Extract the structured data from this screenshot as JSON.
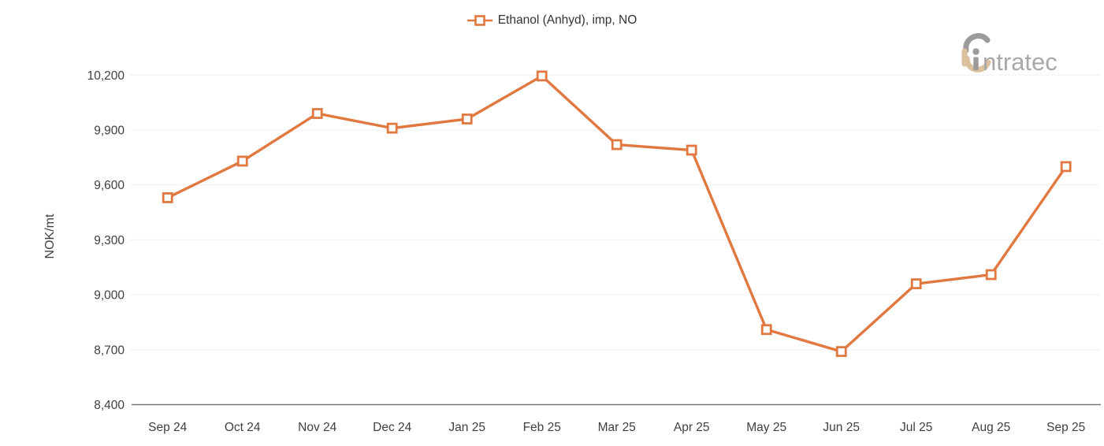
{
  "legend": {
    "label": "Ethanol (Anhyd), imp, NO"
  },
  "logo": {
    "brand_text": "ntratec",
    "brand_full": "intratec",
    "gray": "#9b9b9b",
    "tan": "#ddc09e"
  },
  "chart_data": {
    "type": "line",
    "title": "",
    "legend_entries": [
      "Ethanol (Anhyd), imp, NO"
    ],
    "legend_position": "top-center",
    "categories": [
      "Sep 24",
      "Oct 24",
      "Nov 24",
      "Dec 24",
      "Jan 25",
      "Feb 25",
      "Mar 25",
      "Apr 25",
      "May 25",
      "Jun 25",
      "Jul 25",
      "Aug 25",
      "Sep 25"
    ],
    "values": [
      9530,
      9730,
      9990,
      9910,
      9960,
      10195,
      9820,
      9790,
      8810,
      8690,
      9060,
      9110,
      9700
    ],
    "xlabel": "",
    "ylabel": "NOK/mt",
    "ylim": [
      8400,
      10200
    ],
    "ytick_step": 300,
    "ytick_labels": [
      "8,400",
      "8,700",
      "9,000",
      "9,300",
      "9,600",
      "9,900",
      "10,200"
    ],
    "grid": true,
    "series_color": "#e07840",
    "marker_style": "hollow-square",
    "axis_line_color": "#757575",
    "grid_color": "#f0f0f0",
    "tick_label_color": "#3f3f3f"
  }
}
